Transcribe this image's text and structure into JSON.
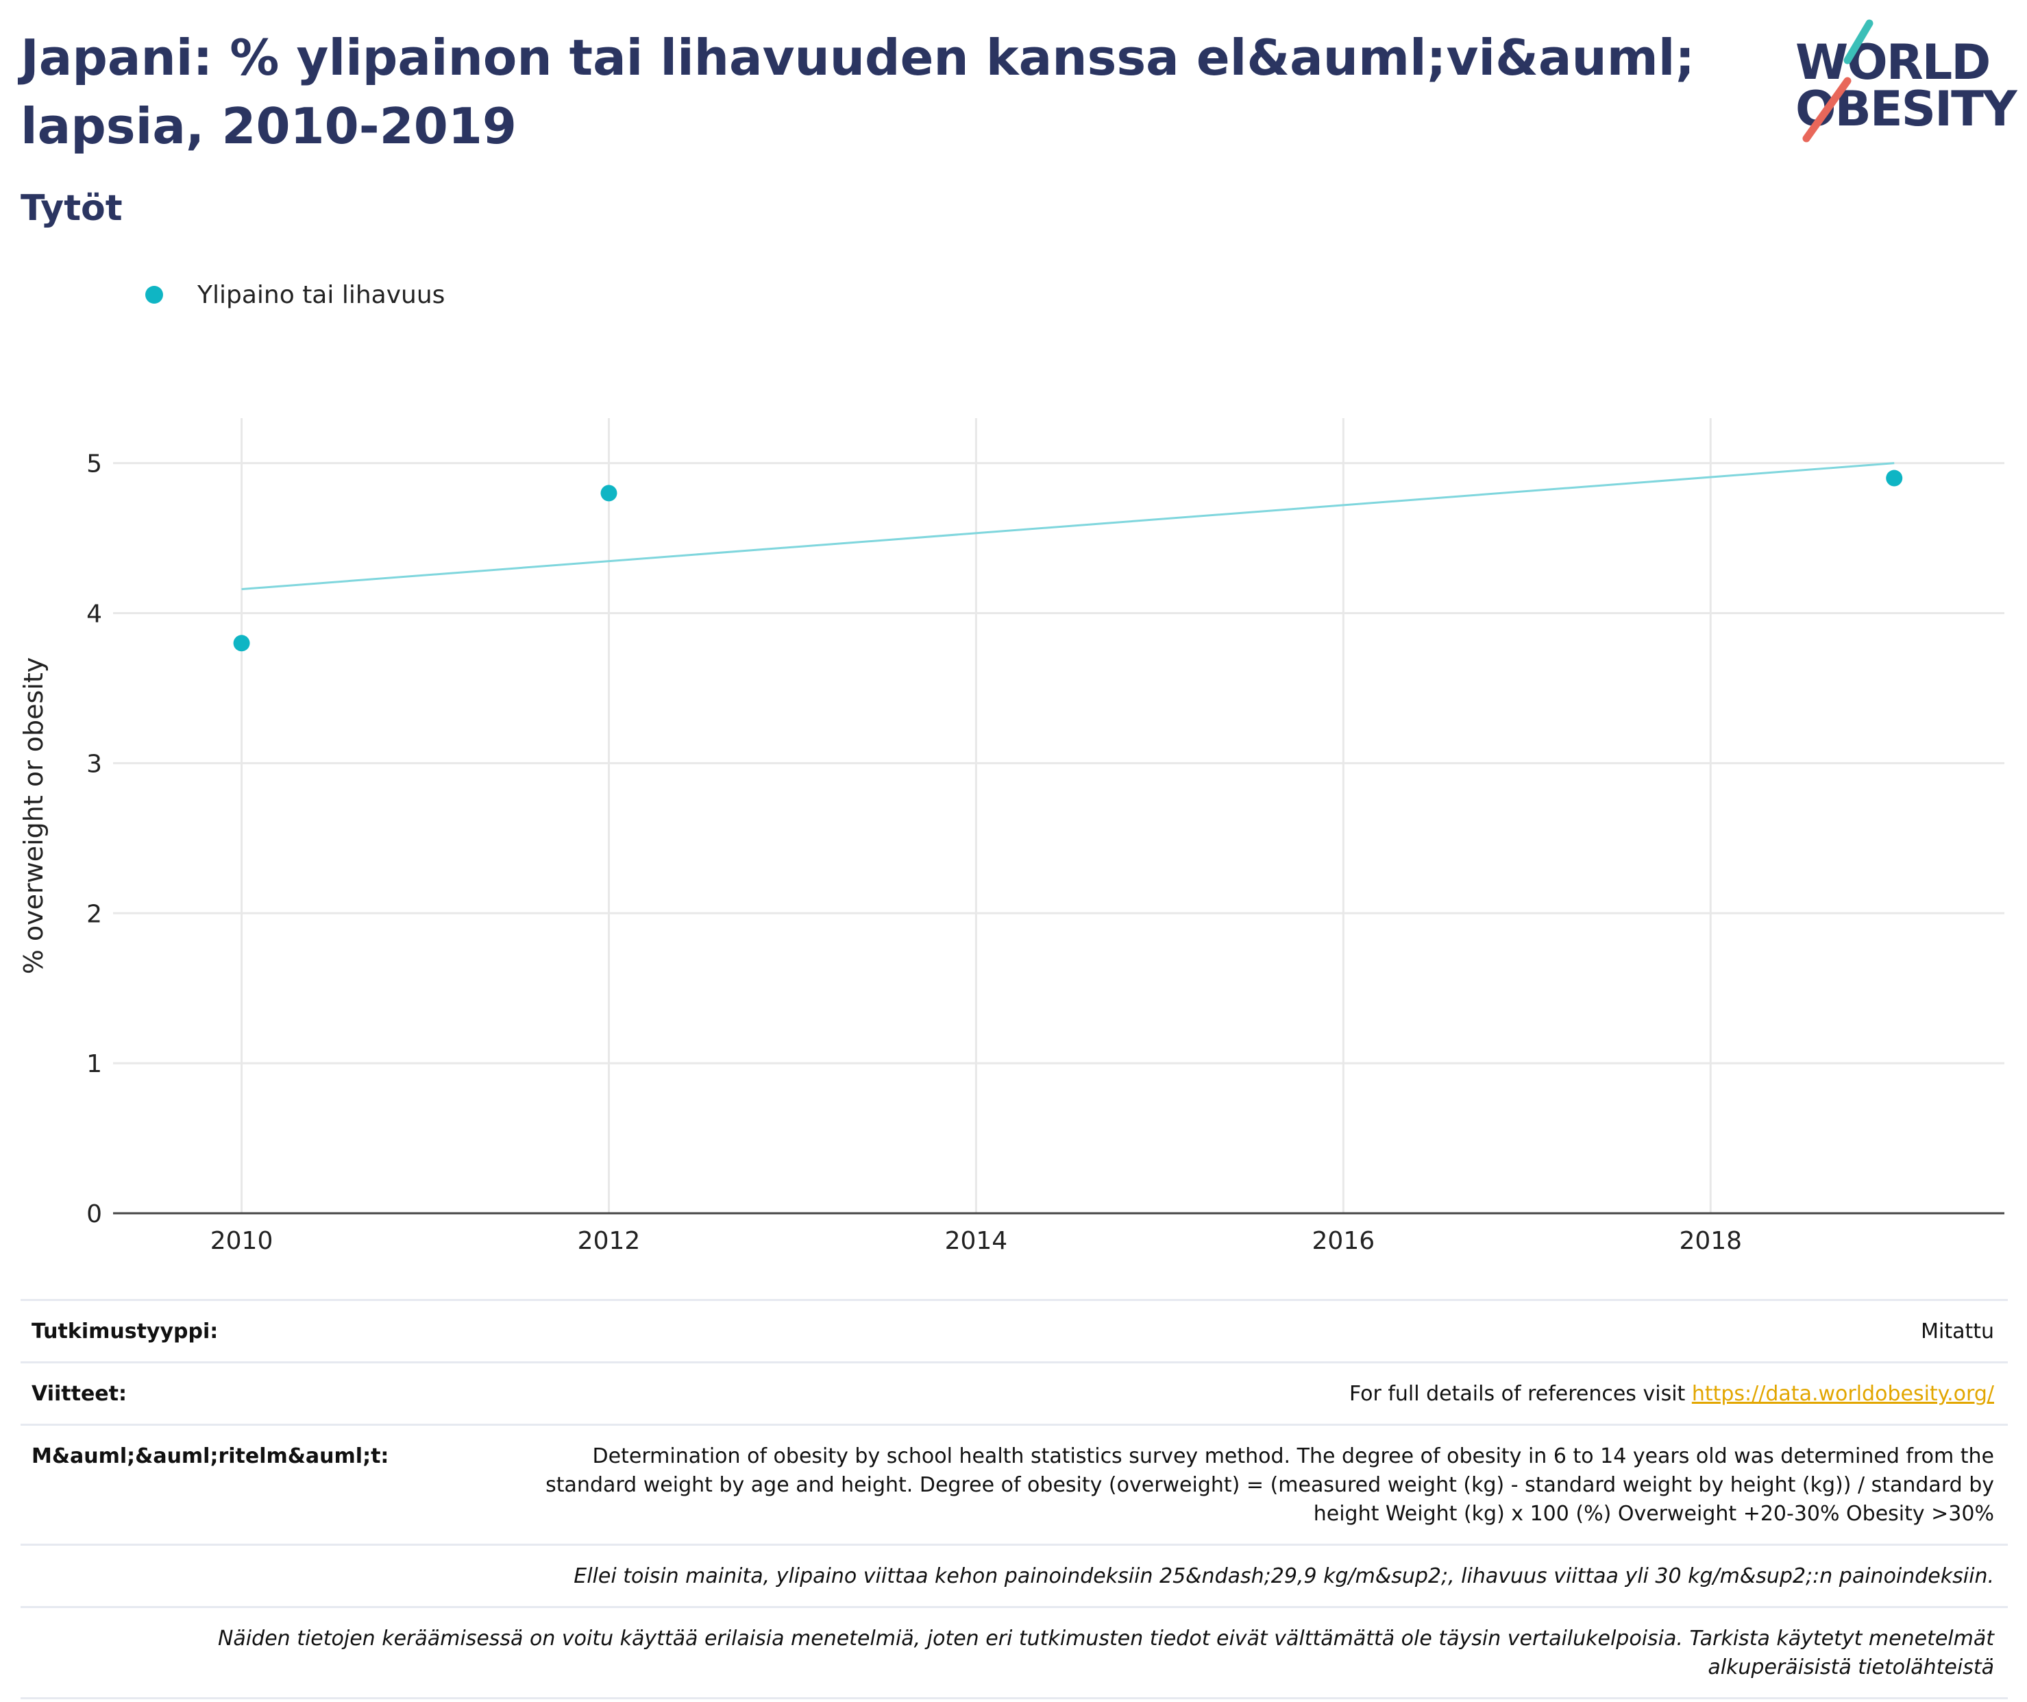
{
  "title": "Japani: % ylipainon tai lihavuuden kanssa el&auml;vi&auml; lapsia, 2010-2019",
  "subtitle": "Tytöt",
  "logo": {
    "line1": "WORLD",
    "line2": "OBESITY"
  },
  "legend": {
    "label": "Ylipaino tai lihavuus"
  },
  "colors": {
    "accent": "#0fb5c4",
    "trend": "#7fd6dd",
    "title": "#2b3561",
    "logo_teal": "#3bbfb8",
    "logo_red": "#e8675a",
    "link": "#e2a600"
  },
  "chart_data": {
    "type": "scatter",
    "ylabel": "% overweight or obesity",
    "xlim": [
      2009.3,
      2019.6
    ],
    "ylim": [
      0,
      5.3
    ],
    "x_ticks": [
      2010,
      2012,
      2014,
      2016,
      2018
    ],
    "y_ticks": [
      0,
      1,
      2,
      3,
      4,
      5
    ],
    "grid": true,
    "series": [
      {
        "name": "Ylipaino tai lihavuus",
        "x": [
          2010,
          2012,
          2019
        ],
        "y": [
          3.8,
          4.8,
          4.9
        ]
      }
    ],
    "trendline": {
      "x": [
        2010,
        2019
      ],
      "y": [
        4.16,
        5.0
      ]
    }
  },
  "info": {
    "study_type_label": "Tutkimustyyppi:",
    "study_type_value": "Mitattu",
    "references_label": "Viitteet:",
    "references_text": "For full details of references visit ",
    "references_link": "https://data.worldobesity.org/",
    "methods_label": "M&auml;&auml;ritelm&auml;t:",
    "methods_text": "Determination of obesity by school health statistics survey method. The degree of obesity in 6 to 14 years old was determined from the standard weight by age and height. Degree of obesity (overweight) = (measured weight (kg) - standard weight by height (kg)) / standard by height Weight (kg) x 100 (%) Overweight +20-30% Obesity >30%",
    "note1": "Ellei toisin mainita, ylipaino viittaa kehon painoindeksiin 25&ndash;29,9 kg/m&sup2;, lihavuus viittaa yli 30 kg/m&sup2;:n painoindeksiin.",
    "note2": "Näiden tietojen keräämisessä on voitu käyttää erilaisia menetelmiä, joten eri tutkimusten tiedot eivät välttämättä ole täysin vertailukelpoisia. Tarkista käytetyt menetelmät alkuperäisistä tietolähteistä"
  }
}
